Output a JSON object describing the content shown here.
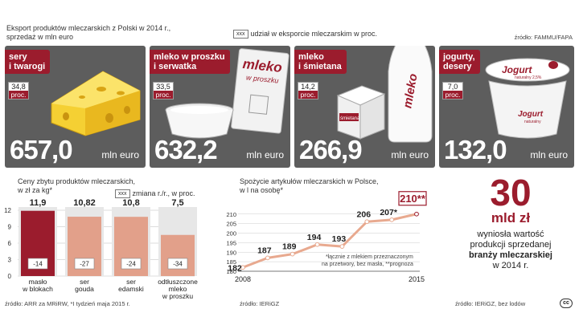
{
  "header": {
    "title_line1": "Eksport produktów mleczarskich z Polski w 2014 r.,",
    "title_line2": "sprzedaż w mln euro",
    "legend_box": "xxx",
    "legend_text": "udział w eksporcie mleczarskim w proc.",
    "source": "źródło: FAMMU/FAPA"
  },
  "export_panels": [
    {
      "label_line1": "sery",
      "label_line2": "i twarogi",
      "share": "34,8",
      "share_unit": "proc.",
      "value": "657,0",
      "unit": "mln euro"
    },
    {
      "label_line1": "mleko w proszku",
      "label_line2": "i serwatka",
      "share": "33,5",
      "share_unit": "proc.",
      "value": "632,2",
      "unit": "mln euro",
      "bag_text": "mleko",
      "bag_sub": "w proszku"
    },
    {
      "label_line1": "mleko",
      "label_line2": "i śmietana",
      "share": "14,2",
      "share_unit": "proc.",
      "value": "266,9",
      "unit": "mln euro",
      "bottle_text": "mleko",
      "carton_text": "śmietana"
    },
    {
      "label_line1": "jogurty,",
      "label_line2": "desery",
      "share": "7,0",
      "share_unit": "proc.",
      "value": "132,0",
      "unit": "mln euro",
      "cup_text": "Jogurt",
      "cup_sub": "naturalny 2,5%",
      "cup_text2": "Jogurt",
      "cup_sub2": "naturalny"
    }
  ],
  "prices": {
    "title_line1": "Ceny zbytu produktów mleczarskich,",
    "title_line2": "w zł za kg*",
    "legend_box": "xxx",
    "legend_text": "zmiana r./r., w proc.",
    "source": "źródło: ARR za MRiRW, *I tydzień maja 2015 r."
  },
  "consumption": {
    "title_line1": "Spożycie artykułów mleczarskich w Polsce,",
    "title_line2": "w l na osobę*",
    "footnote_line1": "*łącznie z mlekiem przeznaczonym",
    "footnote_line2": "na przetwory, bez masła, **prognoza",
    "source": "źródło: IERiGZ"
  },
  "summary": {
    "big_number": "30",
    "unit": "mld zł",
    "line1": "wyniosła wartość",
    "line2": "produkcji sprzedanej",
    "line3": "branży mleczarskiej",
    "line4": "w 2014 r.",
    "source": "źródło: IERiGZ, bez lodów",
    "cc": "cc"
  },
  "chart_data": [
    {
      "type": "bar",
      "categories": [
        "masło\nw blokach",
        "ser\ngouda",
        "ser\nedamski",
        "odtłuszczone\nmleko\nw proszku"
      ],
      "values": [
        11.9,
        10.82,
        10.8,
        7.5
      ],
      "value_labels": [
        "11,9",
        "10,82",
        "10,8",
        "7,5"
      ],
      "changes": [
        -14,
        -27,
        -24,
        -34
      ],
      "change_labels": [
        "-14",
        "-27",
        "-24",
        "-34"
      ],
      "ylim": [
        0,
        12
      ],
      "yticks": [
        0,
        3,
        6,
        9,
        12
      ],
      "colors": {
        "highlight": "#9b1c2d",
        "bars": "#e2a08a",
        "panel": "#e7e7e7"
      }
    },
    {
      "type": "line",
      "x": [
        2008,
        2009,
        2010,
        2011,
        2012,
        2013,
        2014,
        2015
      ],
      "values": [
        182,
        187,
        189,
        194,
        193,
        206,
        207,
        210
      ],
      "value_labels": [
        "182",
        "187",
        "189",
        "194",
        "193",
        "206",
        "207*",
        "210**"
      ],
      "xtick_labels": [
        "2008",
        "2015"
      ],
      "ylim": [
        180,
        212
      ],
      "yticks": [
        180,
        185,
        190,
        195,
        200,
        205,
        210
      ],
      "colors": {
        "line": "#e8a98f",
        "highlight": "#9b1c2d"
      }
    }
  ]
}
